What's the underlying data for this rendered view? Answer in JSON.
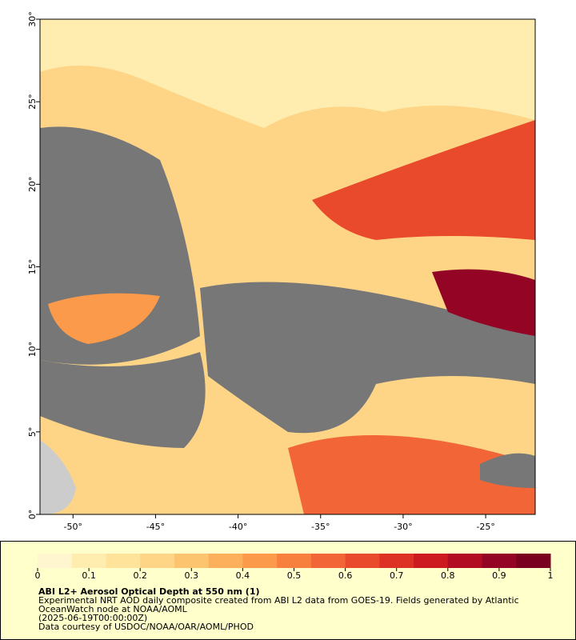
{
  "map": {
    "xlim": [
      -52,
      -22
    ],
    "ylim": [
      0,
      30
    ],
    "xticks": [
      {
        "value": -50,
        "label": "-50°"
      },
      {
        "value": -45,
        "label": "-45°"
      },
      {
        "value": -40,
        "label": "-40°"
      },
      {
        "value": -35,
        "label": "-35°"
      },
      {
        "value": -30,
        "label": "-30°"
      },
      {
        "value": -25,
        "label": "-25°"
      }
    ],
    "yticks": [
      {
        "value": 0,
        "label": "0°"
      },
      {
        "value": 5,
        "label": "5°"
      },
      {
        "value": 10,
        "label": "10°"
      },
      {
        "value": 15,
        "label": "15°"
      },
      {
        "value": 20,
        "label": "20°"
      },
      {
        "value": 25,
        "label": "25°"
      },
      {
        "value": 30,
        "label": "30°"
      }
    ]
  },
  "colorbar": {
    "lim": [
      0,
      1
    ],
    "ticks": [
      0,
      0.1,
      0.2,
      0.3,
      0.4,
      0.5,
      0.6,
      0.7,
      0.8,
      0.9,
      1
    ],
    "colors": [
      "#fff6d0",
      "#ffedb0",
      "#ffe39a",
      "#fed587",
      "#fdc470",
      "#fdb05c",
      "#fc9a4b",
      "#f8803e",
      "#f26536",
      "#ea4a2c",
      "#de3125",
      "#cc1a20",
      "#b20c22",
      "#930425",
      "#7a0020"
    ]
  },
  "caption": {
    "title": "ABI L2+ Aerosol Optical Depth at 550 nm (1)",
    "lines": [
      "Experimental NRT AOD daily composite created from ABI L2 data from GOES-19. Fields generated by Atlantic",
      "OceanWatch node at NOAA/AOML",
      "(2025-06-19T00:00:00Z)",
      "Data courtesy of USDOC/NOAA/OAR/AOML/PHOD"
    ]
  }
}
